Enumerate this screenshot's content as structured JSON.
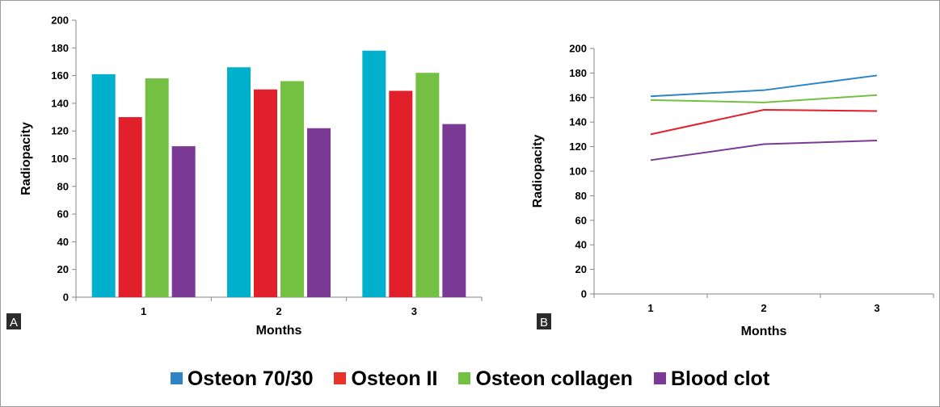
{
  "panels": {
    "a": {
      "label": "A"
    },
    "b": {
      "label": "B"
    }
  },
  "legend": [
    {
      "name": "Osteon 70/30",
      "color": "#2f84c6"
    },
    {
      "name": "Osteon II",
      "color": "#e8332a"
    },
    {
      "name": "Osteon collagen",
      "color": "#74c043"
    },
    {
      "name": "Blood clot",
      "color": "#7a3a96"
    }
  ],
  "chart_data": [
    {
      "type": "bar",
      "categories": [
        "1",
        "2",
        "3"
      ],
      "xlabel": "Months",
      "ylabel": "Radiopacity",
      "ylim": [
        0,
        200
      ],
      "yticks": [
        "0",
        "20",
        "40",
        "60",
        "80",
        "100",
        "120",
        "140",
        "160",
        "180",
        "200"
      ],
      "grid": false,
      "series": [
        {
          "name": "Osteon 70/30",
          "color": "#00b0cc",
          "values": [
            161,
            166,
            178
          ]
        },
        {
          "name": "Osteon II",
          "color": "#e2202b",
          "values": [
            130,
            150,
            149
          ]
        },
        {
          "name": "Osteon collagen",
          "color": "#74c043",
          "values": [
            158,
            156,
            162
          ]
        },
        {
          "name": "Blood clot",
          "color": "#7b3a96",
          "values": [
            109,
            122,
            125
          ]
        }
      ]
    },
    {
      "type": "line",
      "categories": [
        "1",
        "2",
        "3"
      ],
      "xlabel": "Months",
      "ylabel": "Radiopacity",
      "ylim": [
        0,
        200
      ],
      "yticks": [
        "0",
        "20",
        "40",
        "60",
        "80",
        "100",
        "120",
        "140",
        "160",
        "180",
        "200"
      ],
      "grid": false,
      "series": [
        {
          "name": "Osteon 70/30",
          "color": "#2f84c6",
          "values": [
            161,
            166,
            178
          ]
        },
        {
          "name": "Osteon II",
          "color": "#e2202b",
          "values": [
            130,
            150,
            149
          ]
        },
        {
          "name": "Osteon collagen",
          "color": "#74c043",
          "values": [
            158,
            156,
            162
          ]
        },
        {
          "name": "Blood clot",
          "color": "#7b3a96",
          "values": [
            109,
            122,
            125
          ]
        }
      ]
    }
  ]
}
